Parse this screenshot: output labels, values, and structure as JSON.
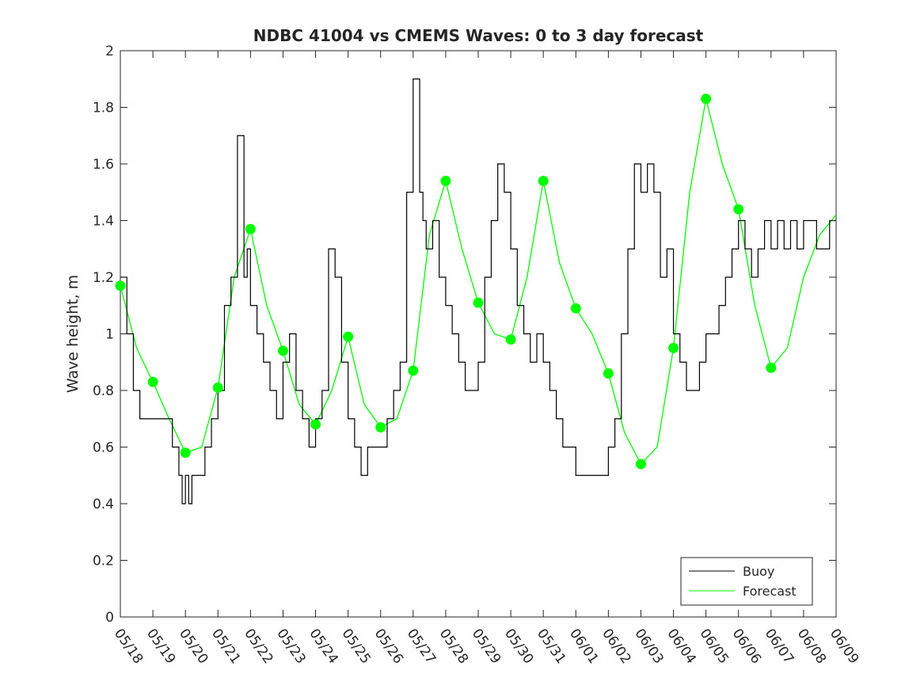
{
  "chart_data": {
    "type": "line",
    "title": "NDBC 41004 vs CMEMS Waves: 0 to 3 day forecast",
    "xlabel": "",
    "ylabel": "Wave height, m",
    "ylim": [
      0,
      2
    ],
    "yticks": [
      "0",
      "0.2",
      "0.4",
      "0.6",
      "0.8",
      "1",
      "1.2",
      "1.4",
      "1.6",
      "1.8",
      "2"
    ],
    "xtick_labels": [
      "05/18",
      "05/19",
      "05/20",
      "05/21",
      "05/22",
      "05/23",
      "05/24",
      "05/25",
      "05/26",
      "05/27",
      "05/28",
      "05/29",
      "05/30",
      "05/31",
      "06/01",
      "06/02",
      "06/03",
      "06/04",
      "06/05",
      "06/06",
      "06/07",
      "06/08",
      "06/09"
    ],
    "xlim_days": [
      0,
      22
    ],
    "grid": false,
    "legend": {
      "placement": "bottom-right",
      "entries": [
        "Buoy",
        "Forecast"
      ]
    },
    "colors": {
      "buoy": "#000000",
      "forecast": "#00ff00",
      "axes": "#262626"
    },
    "series": [
      {
        "name": "Buoy",
        "x": [
          0,
          0.2,
          0.4,
          0.6,
          0.8,
          1.0,
          1.2,
          1.4,
          1.6,
          1.8,
          1.9,
          2.0,
          2.1,
          2.2,
          2.4,
          2.6,
          2.8,
          3.0,
          3.2,
          3.4,
          3.6,
          3.8,
          3.9,
          4.0,
          4.2,
          4.4,
          4.6,
          4.8,
          5.0,
          5.2,
          5.4,
          5.6,
          5.8,
          6.0,
          6.2,
          6.4,
          6.6,
          6.8,
          7.0,
          7.2,
          7.4,
          7.6,
          7.8,
          8.0,
          8.2,
          8.4,
          8.6,
          8.8,
          9.0,
          9.2,
          9.3,
          9.4,
          9.5,
          9.6,
          9.8,
          10.0,
          10.2,
          10.4,
          10.6,
          10.8,
          11.0,
          11.2,
          11.4,
          11.6,
          11.8,
          12.0,
          12.2,
          12.4,
          12.6,
          12.8,
          13.0,
          13.2,
          13.4,
          13.6,
          13.8,
          14.0,
          14.2,
          14.4,
          14.6,
          14.8,
          15.0,
          15.2,
          15.4,
          15.6,
          15.8,
          16.0,
          16.2,
          16.4,
          16.6,
          16.8,
          17.0,
          17.2,
          17.4,
          17.6,
          17.8,
          17.9,
          18.0,
          18.2,
          18.4,
          18.6,
          18.8,
          19.0,
          19.2,
          19.4,
          19.6,
          19.8,
          20.0,
          20.2,
          20.4,
          20.6,
          20.8,
          21.0,
          21.2,
          21.4,
          21.6,
          21.8,
          22.0
        ],
        "values": [
          1.2,
          1.0,
          0.8,
          0.7,
          0.7,
          0.7,
          0.7,
          0.7,
          0.6,
          0.5,
          0.4,
          0.5,
          0.4,
          0.5,
          0.5,
          0.6,
          0.7,
          0.8,
          1.1,
          1.2,
          1.7,
          1.2,
          1.3,
          1.1,
          1.0,
          0.9,
          0.8,
          0.7,
          0.9,
          1.0,
          0.8,
          0.7,
          0.6,
          0.7,
          0.8,
          1.3,
          1.2,
          0.9,
          0.7,
          0.6,
          0.5,
          0.6,
          0.6,
          0.6,
          0.7,
          0.8,
          0.9,
          1.5,
          1.9,
          1.5,
          1.4,
          1.3,
          1.3,
          1.4,
          1.2,
          1.1,
          1.0,
          0.9,
          0.8,
          0.8,
          0.9,
          1.2,
          1.4,
          1.6,
          1.5,
          1.3,
          1.1,
          1.0,
          0.9,
          1.0,
          0.9,
          0.8,
          0.7,
          0.6,
          0.6,
          0.5,
          0.5,
          0.5,
          0.5,
          0.5,
          0.6,
          0.7,
          1.0,
          1.3,
          1.6,
          1.5,
          1.6,
          1.5,
          1.2,
          1.3,
          1.0,
          0.9,
          0.8,
          0.8,
          0.9,
          0.9,
          1.0,
          1.0,
          1.1,
          1.2,
          1.3,
          1.4,
          1.3,
          1.2,
          1.3,
          1.4,
          1.3,
          1.4,
          1.3,
          1.4,
          1.3,
          1.4,
          1.4,
          1.3,
          1.3,
          1.4,
          1.4
        ]
      },
      {
        "name": "Forecast",
        "x": [
          0,
          0.5,
          1.0,
          1.5,
          2.0,
          2.5,
          3.0,
          3.5,
          4.0,
          4.5,
          5.0,
          5.5,
          6.0,
          6.5,
          7.0,
          7.5,
          8.0,
          8.5,
          9.0,
          9.5,
          10.0,
          10.5,
          11.0,
          11.5,
          12.0,
          12.5,
          13.0,
          13.5,
          14.0,
          14.5,
          15.0,
          15.5,
          16.0,
          16.5,
          17.0,
          17.5,
          18.0,
          18.5,
          19.0,
          19.5,
          20.0,
          20.5,
          21.0,
          21.5,
          22.0
        ],
        "values": [
          1.17,
          0.95,
          0.83,
          0.7,
          0.58,
          0.6,
          0.81,
          1.2,
          1.37,
          1.1,
          0.94,
          0.75,
          0.68,
          0.8,
          0.99,
          0.75,
          0.67,
          0.7,
          0.87,
          1.35,
          1.54,
          1.3,
          1.11,
          1.0,
          0.98,
          1.2,
          1.54,
          1.25,
          1.09,
          1.0,
          0.86,
          0.65,
          0.54,
          0.6,
          0.95,
          1.5,
          1.83,
          1.6,
          1.44,
          1.1,
          0.88,
          0.95,
          1.2,
          1.35,
          1.42
        ]
      }
    ],
    "markers": {
      "x": [
        0,
        1,
        2,
        3,
        4,
        5,
        6,
        7,
        8,
        9,
        10,
        11,
        12,
        13,
        14,
        15,
        16,
        17,
        18,
        19,
        20
      ],
      "values": [
        1.17,
        0.83,
        0.58,
        0.81,
        1.37,
        0.94,
        0.68,
        0.99,
        0.67,
        0.87,
        1.54,
        1.11,
        0.98,
        1.54,
        1.09,
        0.86,
        0.54,
        0.95,
        1.83,
        1.44,
        0.88
      ]
    }
  }
}
